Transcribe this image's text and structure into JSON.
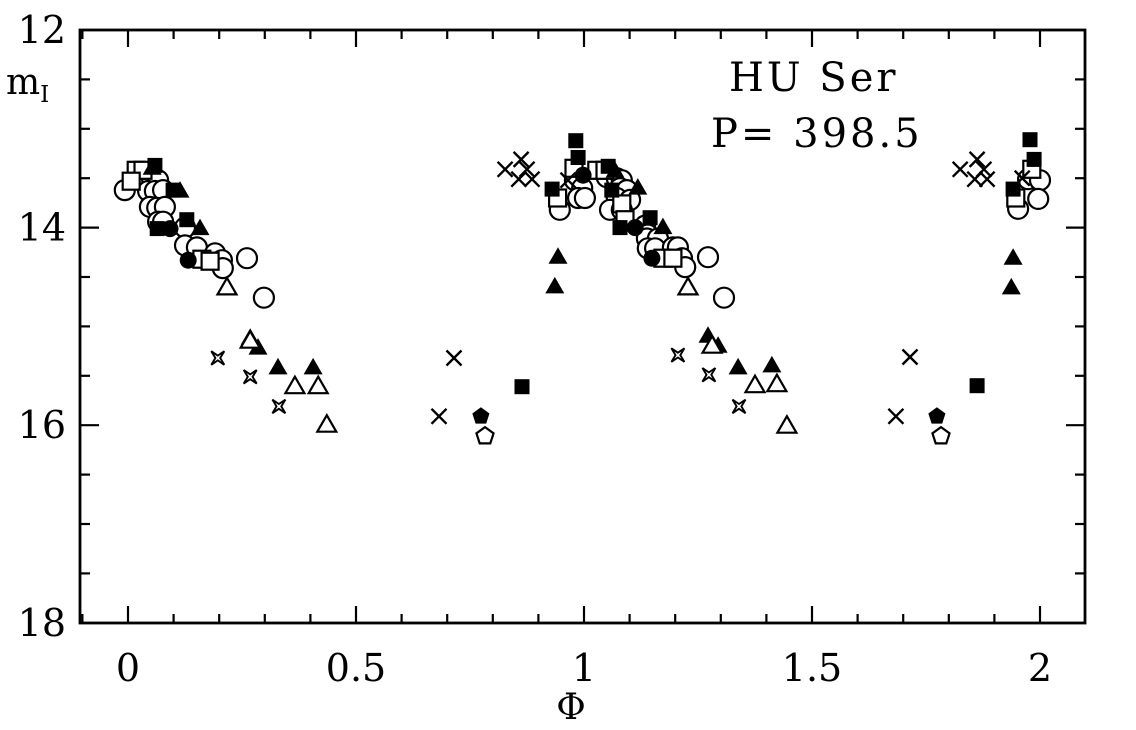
{
  "figure": {
    "background": "#ffffff",
    "ink_color": "#000000",
    "y_axis": {
      "tick_labels": [
        {
          "v": 12,
          "label": "12"
        },
        {
          "v": 14,
          "label": "14"
        },
        {
          "v": 16,
          "label": "16"
        },
        {
          "v": 18,
          "label": "18"
        }
      ],
      "minor_step": 0.5,
      "range": [
        12,
        18
      ]
    },
    "x_axis": {
      "tick_labels": [
        {
          "v": 0,
          "label": "0"
        },
        {
          "v": 0.5,
          "label": "0.5"
        },
        {
          "v": 1,
          "label": "1"
        },
        {
          "v": 1.5,
          "label": "1.5"
        },
        {
          "v": 2,
          "label": "2"
        }
      ],
      "minor_step": 0.1,
      "range": [
        -0.105,
        2.099
      ]
    }
  },
  "chart_data": {
    "type": "scatter",
    "title": "HU Ser",
    "annotation": "P= 398.5",
    "xlabel": "Φ",
    "ylabel_main": "m",
    "ylabel_sub": "I",
    "xlim": [
      -0.105,
      2.099
    ],
    "ylim": [
      18,
      12
    ],
    "y_inverted": true,
    "grid": false,
    "legend": "none",
    "series": [
      {
        "name": "open-circle",
        "marker": "open-circle",
        "points": [
          [
            -0.007,
            13.62
          ],
          [
            0.037,
            13.52
          ],
          [
            0.053,
            13.52
          ],
          [
            0.066,
            13.52
          ],
          [
            0.044,
            13.63
          ],
          [
            0.059,
            13.63
          ],
          [
            0.077,
            13.62
          ],
          [
            0.048,
            13.79
          ],
          [
            0.064,
            13.8
          ],
          [
            0.081,
            13.79
          ],
          [
            0.066,
            13.94
          ],
          [
            0.077,
            13.94
          ],
          [
            0.125,
            14.0
          ],
          [
            0.125,
            14.18
          ],
          [
            0.151,
            14.2
          ],
          [
            0.191,
            14.26
          ],
          [
            0.206,
            14.33
          ],
          [
            0.208,
            14.41
          ],
          [
            0.261,
            14.31
          ],
          [
            0.298,
            14.71
          ],
          [
            0.947,
            13.82
          ],
          [
            0.98,
            13.52
          ],
          [
            0.996,
            13.6
          ],
          [
            0.987,
            13.7
          ],
          [
            1.002,
            13.7
          ],
          [
            1.05,
            13.49
          ],
          [
            1.072,
            13.5
          ],
          [
            1.083,
            13.52
          ],
          [
            1.079,
            13.6
          ],
          [
            1.094,
            13.62
          ],
          [
            1.072,
            13.7
          ],
          [
            1.101,
            13.72
          ],
          [
            1.057,
            13.82
          ],
          [
            1.083,
            13.82
          ],
          [
            1.134,
            13.98
          ],
          [
            1.14,
            14.07
          ],
          [
            1.138,
            14.11
          ],
          [
            1.162,
            14.11
          ],
          [
            1.14,
            14.21
          ],
          [
            1.156,
            14.21
          ],
          [
            1.195,
            14.2
          ],
          [
            1.206,
            14.2
          ],
          [
            1.215,
            14.31
          ],
          [
            1.272,
            14.3
          ],
          [
            1.222,
            14.4
          ],
          [
            1.307,
            14.71
          ],
          [
            1.974,
            13.51
          ],
          [
            2.0,
            13.52
          ],
          [
            1.996,
            13.71
          ],
          [
            1.952,
            13.81
          ]
        ]
      },
      {
        "name": "open-square",
        "marker": "open-square",
        "points": [
          [
            0.018,
            13.42
          ],
          [
            0.033,
            13.42
          ],
          [
            0.007,
            13.53
          ],
          [
            0.162,
            14.32
          ],
          [
            0.18,
            14.34
          ],
          [
            0.978,
            13.4
          ],
          [
            0.942,
            13.7
          ],
          [
            1.028,
            13.42
          ],
          [
            1.046,
            13.42
          ],
          [
            1.083,
            13.76
          ],
          [
            1.09,
            13.92
          ],
          [
            1.173,
            14.31
          ],
          [
            1.195,
            14.31
          ],
          [
            1.982,
            13.41
          ],
          [
            1.947,
            13.7
          ]
        ]
      },
      {
        "name": "filled-square",
        "marker": "filled-square",
        "points": [
          [
            0.059,
            13.37
          ],
          [
            0.099,
            13.62
          ],
          [
            0.064,
            14.01
          ],
          [
            0.129,
            13.92
          ],
          [
            0.864,
            15.61
          ],
          [
            1.862,
            15.6
          ],
          [
            0.982,
            13.12
          ],
          [
            0.987,
            13.29
          ],
          [
            0.93,
            13.61
          ],
          [
            1.053,
            13.38
          ],
          [
            1.061,
            13.62
          ],
          [
            1.079,
            14.0
          ],
          [
            1.145,
            13.9
          ],
          [
            1.978,
            13.11
          ],
          [
            1.987,
            13.31
          ],
          [
            1.941,
            13.61
          ]
        ]
      },
      {
        "name": "filled-circle",
        "marker": "filled-circle",
        "points": [
          [
            0.092,
            14.01
          ],
          [
            0.132,
            14.33
          ],
          [
            0.998,
            13.47
          ],
          [
            1.112,
            14.0
          ],
          [
            1.149,
            14.31
          ]
        ]
      },
      {
        "name": "filled-triangle",
        "marker": "filled-triangle",
        "points": [
          [
            0.053,
            13.39
          ],
          [
            0.114,
            13.62
          ],
          [
            0.158,
            14.0
          ],
          [
            0.268,
            15.11
          ],
          [
            0.285,
            15.21
          ],
          [
            0.329,
            15.41
          ],
          [
            0.406,
            15.41
          ],
          [
            0.943,
            14.29
          ],
          [
            0.936,
            14.59
          ],
          [
            1.068,
            13.42
          ],
          [
            1.118,
            13.59
          ],
          [
            1.173,
            13.99
          ],
          [
            1.272,
            15.09
          ],
          [
            1.294,
            15.19
          ],
          [
            1.338,
            15.41
          ],
          [
            1.412,
            15.39
          ],
          [
            1.941,
            14.3
          ],
          [
            1.937,
            14.6
          ]
        ]
      },
      {
        "name": "open-triangle",
        "marker": "open-triangle",
        "points": [
          [
            0.217,
            14.6
          ],
          [
            0.268,
            15.14
          ],
          [
            0.366,
            15.6
          ],
          [
            0.417,
            15.6
          ],
          [
            0.436,
            15.99
          ],
          [
            1.228,
            14.6
          ],
          [
            1.281,
            15.19
          ],
          [
            1.375,
            15.59
          ],
          [
            1.423,
            15.58
          ],
          [
            1.445,
            16.0
          ]
        ]
      },
      {
        "name": "cross",
        "marker": "cross",
        "points": [
          [
            0.682,
            15.91
          ],
          [
            0.715,
            15.32
          ],
          [
            0.827,
            13.41
          ],
          [
            0.862,
            13.31
          ],
          [
            0.875,
            13.41
          ],
          [
            0.857,
            13.51
          ],
          [
            0.886,
            13.51
          ],
          [
            0.965,
            13.52
          ],
          [
            1.684,
            15.91
          ],
          [
            1.715,
            15.31
          ],
          [
            1.825,
            13.41
          ],
          [
            1.862,
            13.31
          ],
          [
            1.877,
            13.41
          ],
          [
            1.857,
            13.51
          ],
          [
            1.884,
            13.51
          ],
          [
            1.961,
            13.5
          ]
        ]
      },
      {
        "name": "four-point-star",
        "marker": "four-point-star",
        "points": [
          [
            0.197,
            15.32
          ],
          [
            0.268,
            15.51
          ],
          [
            0.331,
            15.81
          ],
          [
            1.206,
            15.29
          ],
          [
            1.274,
            15.49
          ],
          [
            1.34,
            15.81
          ]
        ]
      },
      {
        "name": "filled-pentagon",
        "marker": "filled-pentagon",
        "points": [
          [
            0.774,
            15.91
          ],
          [
            1.774,
            15.91
          ]
        ]
      },
      {
        "name": "open-pentagon",
        "marker": "open-pentagon",
        "points": [
          [
            0.783,
            16.11
          ],
          [
            1.783,
            16.11
          ]
        ]
      }
    ]
  }
}
